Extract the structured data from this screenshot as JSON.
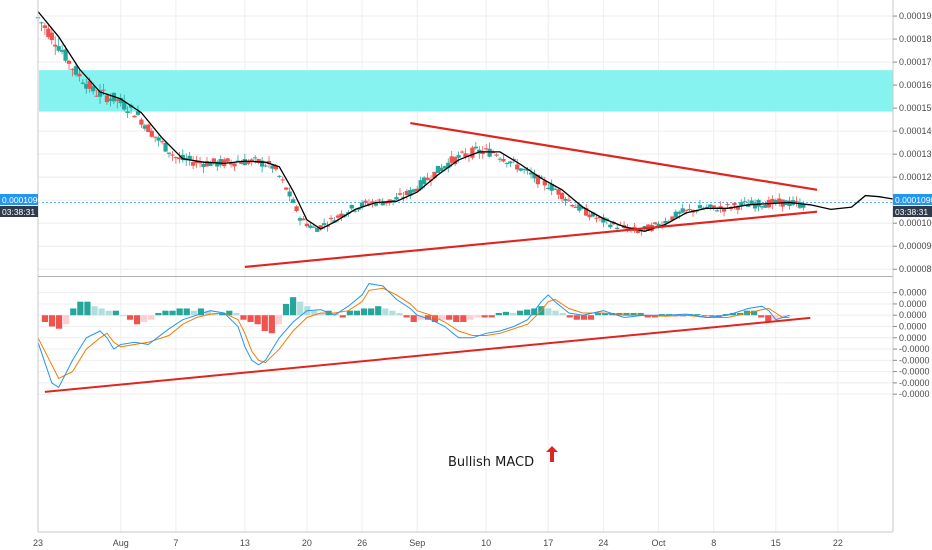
{
  "chart_data": [
    {
      "type": "candlestick",
      "ylim": [
        7.75e-05,
        0.0001935
      ],
      "xlim": [
        0,
        124
      ],
      "price_ticks": [
        "0.0000800",
        "0.0000900",
        "0.0001000",
        "0.0001100",
        "0.0001200",
        "0.0001300",
        "0.0001400",
        "0.0001500",
        "0.0001600",
        "0.0001700",
        "0.0001800",
        "0.0001900"
      ],
      "price_tick_values": [
        8e-05,
        9e-05,
        0.0001,
        0.00011,
        0.00012,
        0.00013,
        0.00014,
        0.00015,
        0.00016,
        0.00017,
        0.00018,
        0.00019
      ],
      "last_price_label": "0.0001090",
      "last_price_value": 0.000109,
      "countdown_label": "03:38:31",
      "resistance_zone": [
        0.0001485,
        0.0001665
      ],
      "moving_average_points": [
        [
          0,
          0.000192
        ],
        [
          3,
          0.000181
        ],
        [
          6,
          0.000167
        ],
        [
          9,
          0.000157
        ],
        [
          12,
          0.000154
        ],
        [
          15,
          0.000148
        ],
        [
          18,
          0.000137
        ],
        [
          21,
          0.000128
        ],
        [
          24,
          0.0001265
        ],
        [
          27,
          0.000126
        ],
        [
          30,
          0.000127
        ],
        [
          33,
          0.0001265
        ],
        [
          35,
          0.0001245
        ],
        [
          37,
          0.000114
        ],
        [
          39,
          0.0001015
        ],
        [
          41,
          9.75e-05
        ],
        [
          43,
          0.0001005
        ],
        [
          46,
          0.000106
        ],
        [
          49,
          0.000109
        ],
        [
          52,
          0.0001095
        ],
        [
          55,
          0.0001135
        ],
        [
          58,
          0.000121
        ],
        [
          61,
          0.0001275
        ],
        [
          64,
          0.000131
        ],
        [
          67,
          0.000131
        ],
        [
          70,
          0.0001255
        ],
        [
          73,
          0.0001195
        ],
        [
          76,
          0.0001145
        ],
        [
          79,
          0.000107
        ],
        [
          82,
          0.000102
        ],
        [
          85,
          9.85e-05
        ],
        [
          88,
          9.65e-05
        ],
        [
          91,
          9.95e-05
        ],
        [
          94,
          0.0001045
        ],
        [
          97,
          0.0001065
        ],
        [
          100,
          0.0001065
        ],
        [
          103,
          0.000108
        ],
        [
          106,
          0.0001085
        ],
        [
          109,
          0.000109
        ],
        [
          112,
          0.000108
        ],
        [
          115,
          0.000106
        ],
        [
          118,
          0.000107
        ],
        [
          120,
          0.000112
        ],
        [
          122,
          0.0001115
        ],
        [
          124,
          0.0001105
        ]
      ],
      "trendlines": [
        {
          "from": [
            54,
            0.0001435
          ],
          "to": [
            113,
            0.0001145
          ]
        },
        {
          "from": [
            30,
            8.1e-05
          ],
          "to": [
            113,
            0.000105
          ]
        }
      ]
    },
    {
      "type": "line",
      "ylim": [
        -0.00093,
        0.000165
      ],
      "osc_ticks": [
        "0.0000",
        "0.0000",
        "0.0000",
        "0.0000",
        "0.0000",
        "-0.0000",
        "-0.0000",
        "-0.0000",
        "-0.0000",
        "-0.0000"
      ],
      "osc_tick_values": [
        0.0001,
        5e-05,
        0.0,
        -5e-05,
        -0.0001,
        -0.00015,
        -0.0002,
        -0.00025,
        -0.0003,
        -0.00035
      ],
      "x_ticks": [
        "23",
        "Aug",
        "7",
        "13",
        "20",
        "26",
        "Sep",
        "10",
        "17",
        "24",
        "Oct",
        "8",
        "15",
        "22"
      ],
      "x_tick_positions": [
        0,
        12,
        20,
        30,
        39,
        47,
        55,
        65,
        74,
        82,
        90,
        98,
        107,
        116
      ],
      "series": [
        {
          "color": "#2196f3",
          "values": [
            [
              0,
              -0.00012
            ],
            [
              2,
              -0.0003
            ],
            [
              3,
              -0.00032
            ],
            [
              5,
              -0.0002
            ],
            [
              7,
              -0.0001
            ],
            [
              9,
              -7e-05
            ],
            [
              10,
              -0.0001
            ],
            [
              11,
              -0.00015
            ],
            [
              12,
              -0.00013
            ],
            [
              14,
              -0.00012
            ],
            [
              16,
              -0.00013
            ],
            [
              19,
              -6e-05
            ],
            [
              21,
              -2e-05
            ],
            [
              23,
              0.0
            ],
            [
              25,
              2e-05
            ],
            [
              27,
              1e-05
            ],
            [
              29,
              -5e-05
            ],
            [
              30,
              -0.00014
            ],
            [
              31,
              -0.0002
            ],
            [
              32,
              -0.00022
            ],
            [
              33,
              -0.0002
            ],
            [
              35,
              -0.0001
            ],
            [
              37,
              -3e-05
            ],
            [
              39,
              2e-05
            ],
            [
              41,
              2.5e-05
            ],
            [
              43,
              0.0
            ],
            [
              45,
              4e-05
            ],
            [
              47,
              9e-05
            ],
            [
              48,
              0.00014
            ],
            [
              50,
              0.00013
            ],
            [
              52,
              7e-05
            ],
            [
              54,
              3e-05
            ],
            [
              55,
              0.0
            ],
            [
              57,
              -2e-05
            ],
            [
              59,
              -5e-05
            ],
            [
              61,
              -0.0001
            ],
            [
              63,
              -0.0001
            ],
            [
              65,
              -8e-05
            ],
            [
              67,
              -7e-05
            ],
            [
              69,
              -5e-05
            ],
            [
              71,
              -2e-05
            ],
            [
              73,
              6e-05
            ],
            [
              74,
              9e-05
            ],
            [
              75,
              6e-05
            ],
            [
              77,
              1e-05
            ],
            [
              79,
              0.0
            ],
            [
              82,
              2e-05
            ],
            [
              85,
              -1e-05
            ],
            [
              88,
              0.0
            ],
            [
              91,
              0.0
            ],
            [
              94,
              5e-06
            ],
            [
              97,
              -1e-05
            ],
            [
              100,
              0.0
            ],
            [
              103,
              3e-05
            ],
            [
              105,
              4e-05
            ],
            [
              106,
              2e-05
            ],
            [
              107,
              -2e-05
            ],
            [
              108,
              -1e-05
            ],
            [
              109,
              0.0
            ]
          ]
        },
        {
          "color": "#f57c00",
          "values": [
            [
              0,
              -0.0001
            ],
            [
              2,
              -0.00022
            ],
            [
              3,
              -0.00028
            ],
            [
              5,
              -0.00025
            ],
            [
              7,
              -0.00015
            ],
            [
              9,
              -0.0001
            ],
            [
              10,
              -8e-05
            ],
            [
              11,
              -0.00012
            ],
            [
              12,
              -0.00014
            ],
            [
              14,
              -0.00013
            ],
            [
              16,
              -0.00012
            ],
            [
              19,
              -9e-05
            ],
            [
              21,
              -4e-05
            ],
            [
              23,
              -1e-05
            ],
            [
              25,
              5e-06
            ],
            [
              27,
              1e-05
            ],
            [
              29,
              -2e-05
            ],
            [
              30,
              -8e-05
            ],
            [
              31,
              -0.00016
            ],
            [
              32,
              -0.0002
            ],
            [
              33,
              -0.00021
            ],
            [
              35,
              -0.00015
            ],
            [
              37,
              -7e-05
            ],
            [
              39,
              -1e-05
            ],
            [
              41,
              1e-05
            ],
            [
              43,
              1e-05
            ],
            [
              45,
              2e-05
            ],
            [
              47,
              6e-05
            ],
            [
              48,
              0.00011
            ],
            [
              50,
              0.00012
            ],
            [
              52,
              9e-05
            ],
            [
              54,
              5e-05
            ],
            [
              55,
              2e-05
            ],
            [
              57,
              0.0
            ],
            [
              59,
              -3e-05
            ],
            [
              61,
              -7e-05
            ],
            [
              63,
              -9e-05
            ],
            [
              65,
              -9e-05
            ],
            [
              67,
              -8e-05
            ],
            [
              69,
              -6e-05
            ],
            [
              71,
              -4e-05
            ],
            [
              73,
              2e-05
            ],
            [
              74,
              6e-05
            ],
            [
              75,
              7e-05
            ],
            [
              77,
              3e-05
            ],
            [
              79,
              1e-05
            ],
            [
              82,
              1e-05
            ],
            [
              85,
              0.0
            ],
            [
              88,
              0.0
            ],
            [
              91,
              -5e-06
            ],
            [
              94,
              0.0
            ],
            [
              97,
              -1e-05
            ],
            [
              100,
              -1e-05
            ],
            [
              103,
              1e-05
            ],
            [
              105,
              2.5e-05
            ],
            [
              106,
              3e-05
            ],
            [
              107,
              1e-05
            ],
            [
              108,
              -1e-05
            ],
            [
              109,
              -1e-05
            ]
          ]
        }
      ],
      "histogram": [
        -3e-05,
        -5e-05,
        -6e-05,
        -4e-05,
        3e-05,
        6e-05,
        6e-05,
        4e-05,
        3e-05,
        2e-05,
        2e-05,
        0.0,
        -2e-05,
        -4e-05,
        -3e-05,
        -2e-05,
        1e-05,
        2e-05,
        2e-05,
        3e-05,
        3e-05,
        2e-05,
        3e-05,
        2e-05,
        1e-05,
        1e-05,
        2e-05,
        1e-05,
        -2e-05,
        -3e-05,
        -4e-05,
        -7e-05,
        -8e-05,
        -4e-05,
        5e-05,
        8e-05,
        6e-05,
        4e-05,
        2e-05,
        1e-05,
        2e-05,
        1e-05,
        -1e-05,
        2e-05,
        2e-05,
        3e-05,
        3e-05,
        4e-05,
        3e-05,
        2e-05,
        1e-05,
        -1e-05,
        -3e-05,
        -2e-05,
        -2e-05,
        -3e-05,
        -2e-05,
        -2e-05,
        -3e-05,
        -3e-05,
        -2e-05,
        -1e-05,
        -1e-05,
        -1e-05,
        1e-05,
        1.5e-05,
        1e-05,
        2e-05,
        2.5e-05,
        3e-05,
        4e-05,
        3e-05,
        2e-05,
        1e-05,
        -1e-05,
        -2e-05,
        -2e-05,
        -2e-05,
        1e-05,
        1e-05,
        1e-05,
        1e-05,
        1e-05,
        1e-05,
        1e-05,
        -1e-05,
        -1e-05,
        5e-06,
        5e-06,
        -5e-06,
        -5e-06,
        5e-06,
        5e-06,
        -5e-06,
        -5e-06,
        -1e-05,
        5e-06,
        1e-05,
        1e-05,
        2e-05,
        2e-05,
        -1e-05,
        -3e-05,
        -2e-05,
        -1e-05,
        -5e-06
      ],
      "trendline": {
        "from": [
          1,
          -0.00034
        ],
        "to": [
          112,
          -1.2e-05
        ]
      },
      "annotation": "Bullish MACD"
    }
  ]
}
